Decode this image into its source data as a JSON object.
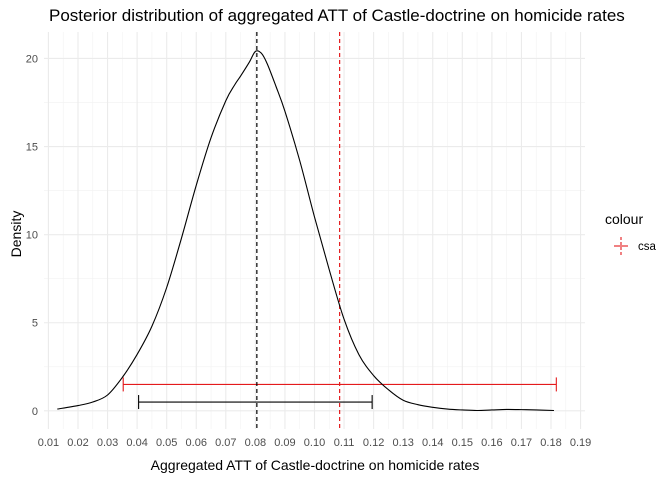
{
  "chart_data": {
    "type": "line",
    "title": "Posterior distribution of aggregated ATT of Castle-doctrine on homicide rates",
    "xlabel": "Aggregated ATT of Castle-doctrine on homicide rates",
    "ylabel": "Density",
    "xlim": [
      0.0085,
      0.1915
    ],
    "ylim": [
      -1.03,
      21.5
    ],
    "x_ticks": [
      0.01,
      0.02,
      0.03,
      0.04,
      0.05,
      0.06,
      0.07,
      0.08,
      0.09,
      0.1,
      0.11,
      0.12,
      0.13,
      0.14,
      0.15,
      0.16,
      0.17,
      0.18,
      0.19
    ],
    "x_tick_labels": [
      "0.01",
      "0.02",
      "0.03",
      "0.04",
      "0.05",
      "0.06",
      "0.07",
      "0.08",
      "0.09",
      "0.10",
      "0.11",
      "0.12",
      "0.13",
      "0.14",
      "0.15",
      "0.16",
      "0.17",
      "0.18",
      "0.19"
    ],
    "y_ticks": [
      0,
      5,
      10,
      15,
      20
    ],
    "y_tick_labels": [
      "0",
      "5",
      "10",
      "15",
      "20"
    ],
    "grid": true,
    "density": {
      "color": "#000000",
      "x": [
        0.013,
        0.02,
        0.025,
        0.03,
        0.035,
        0.04,
        0.045,
        0.05,
        0.055,
        0.06,
        0.065,
        0.07,
        0.073,
        0.075,
        0.078,
        0.08,
        0.082,
        0.084,
        0.087,
        0.09,
        0.095,
        0.1,
        0.105,
        0.11,
        0.115,
        0.12,
        0.125,
        0.13,
        0.135,
        0.14,
        0.145,
        0.15,
        0.155,
        0.16,
        0.165,
        0.17,
        0.175,
        0.181
      ],
      "y": [
        0.1,
        0.3,
        0.5,
        0.9,
        1.9,
        3.2,
        4.8,
        7.0,
        9.8,
        12.8,
        15.5,
        17.6,
        18.5,
        19.0,
        19.8,
        20.4,
        20.3,
        19.7,
        18.4,
        17.0,
        14.2,
        11.0,
        8.0,
        5.2,
        3.2,
        2.0,
        1.2,
        0.6,
        0.35,
        0.2,
        0.1,
        0.05,
        0.02,
        0.05,
        0.08,
        0.07,
        0.05,
        0.02
      ]
    },
    "vlines": [
      {
        "x": 0.0805,
        "color": "#000000",
        "dash": "dashed"
      },
      {
        "x": 0.1085,
        "color": "#e41a1c",
        "dash": "dashed"
      }
    ],
    "intervals": [
      {
        "low": 0.0353,
        "high": 0.1818,
        "y": 1.5,
        "color": "#e41a1c"
      },
      {
        "low": 0.0405,
        "high": 0.1195,
        "y": 0.5,
        "color": "#000000"
      }
    ],
    "legend": {
      "title": "colour",
      "placement": "right",
      "items": [
        {
          "label": "csa",
          "color": "#e41a1c"
        }
      ]
    }
  }
}
